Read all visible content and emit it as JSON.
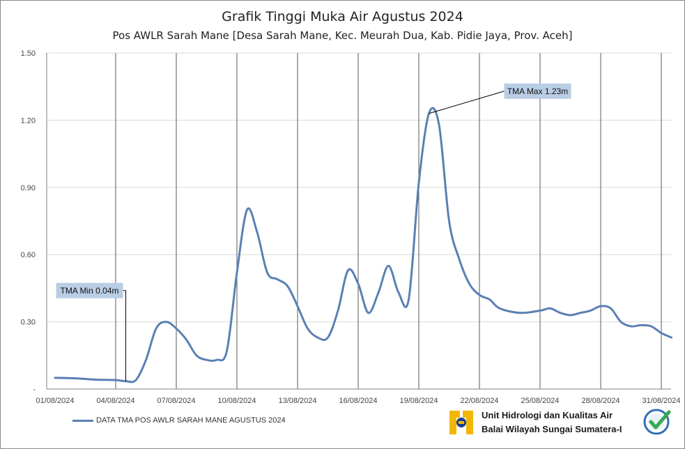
{
  "chart_data": {
    "type": "line",
    "title": "Grafik Tinggi Muka Air Agustus 2024",
    "subtitle": "Pos AWLR Sarah Mane [Desa Sarah Mane, Kec. Meurah Dua, Kab. Pidie Jaya, Prov. Aceh]",
    "xlabel": "",
    "ylabel": "",
    "ylim": [
      0,
      1.5
    ],
    "yticks": [
      "-",
      "0.30",
      "0.60",
      "0.90",
      "1.20",
      "1.50"
    ],
    "xticks": [
      "01/08/2024",
      "04/08/2024",
      "07/08/2024",
      "10/08/2024",
      "13/08/2024",
      "16/08/2024",
      "19/08/2024",
      "22/08/2024",
      "25/08/2024",
      "28/08/2024",
      "31/08/2024"
    ],
    "grid": true,
    "legend_position": "bottom-left",
    "series": [
      {
        "name": "DATA TMA POS AWLR SARAH MANE AGUSTUS 2024",
        "color": "#5a80b3",
        "x": [
          1,
          2,
          3,
          4,
          4.5,
          5,
          5.5,
          6,
          6.5,
          7,
          7.5,
          8,
          8.5,
          9,
          9.5,
          10,
          10.5,
          11,
          11.5,
          12,
          12.5,
          13,
          13.5,
          14,
          14.5,
          15,
          15.5,
          16,
          16.5,
          17,
          17.5,
          18,
          18.5,
          19,
          19.5,
          20,
          20.5,
          21,
          21.5,
          22,
          22.5,
          23,
          24,
          25,
          25.5,
          26,
          26.5,
          27,
          27.5,
          28,
          28.5,
          29,
          29.5,
          30,
          30.5,
          31,
          31.5
        ],
        "values": [
          0.05,
          0.048,
          0.042,
          0.04,
          0.035,
          0.04,
          0.13,
          0.27,
          0.3,
          0.27,
          0.22,
          0.15,
          0.13,
          0.13,
          0.17,
          0.52,
          0.8,
          0.7,
          0.52,
          0.49,
          0.46,
          0.37,
          0.27,
          0.23,
          0.23,
          0.35,
          0.53,
          0.47,
          0.34,
          0.43,
          0.55,
          0.43,
          0.4,
          0.92,
          1.23,
          1.18,
          0.75,
          0.58,
          0.47,
          0.42,
          0.4,
          0.36,
          0.34,
          0.35,
          0.36,
          0.34,
          0.33,
          0.34,
          0.35,
          0.37,
          0.36,
          0.3,
          0.28,
          0.285,
          0.28,
          0.25,
          0.23
        ]
      }
    ],
    "annotations": [
      {
        "text": "TMA Max 1.23m",
        "x": 19.5,
        "y": 1.23,
        "placement": "upper-right"
      },
      {
        "text": "TMA Min 0.04m",
        "x": 4.5,
        "y": 0.035,
        "placement": "upper-left"
      }
    ]
  },
  "footer": {
    "line1": "Unit Hidrologi dan Kualitas Air",
    "line2": "Balai Wilayah Sungai Sumatera-I"
  },
  "colors": {
    "line": "#5a80b3",
    "annotation_bg": "#b9cde5",
    "logo_yellow": "#f2b705",
    "logo_blue": "#1b3f8f",
    "badge_blue": "#2f6fb5",
    "badge_green": "#35a853"
  }
}
